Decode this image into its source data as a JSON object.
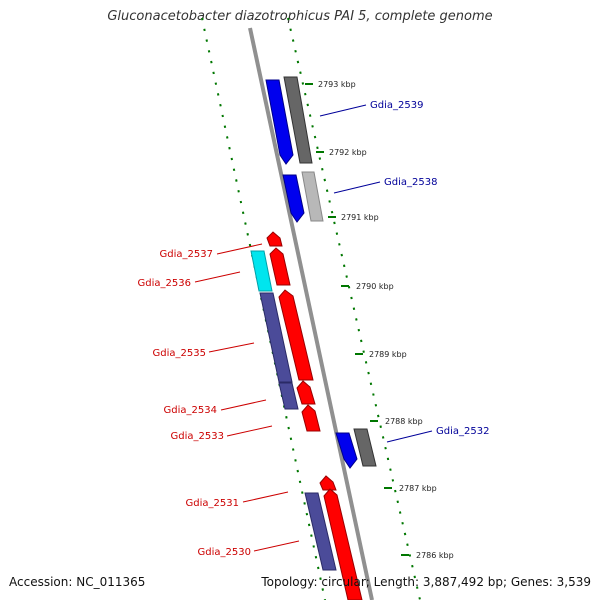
{
  "title": "Gluconacetobacter diazotrophicus PAI 5, complete genome",
  "footer": {
    "accession": "Accession: NC_011365",
    "summary": "Topology: circular; Length: 3,887,492 bp; Genes: 3,539"
  },
  "colors": {
    "forward_cds": "#ff0000",
    "reverse_cds": "#0000ff",
    "reverse_other": "#3333aa",
    "feature_cyan": "#00e5ee",
    "feature_gray": "#666666",
    "backbone": "#909090",
    "tick_green": "#007700",
    "label_red": "#cc0000",
    "label_blue": "#000099"
  },
  "ticks": [
    {
      "label": "2793 kbp"
    },
    {
      "label": "2792 kbp"
    },
    {
      "label": "2791 kbp"
    },
    {
      "label": "2790 kbp"
    },
    {
      "label": "2789 kbp"
    },
    {
      "label": "2788 kbp"
    },
    {
      "label": "2787 kbp"
    },
    {
      "label": "2786 kbp"
    }
  ],
  "genes": [
    {
      "name": "Gdia_2539",
      "strand": "reverse"
    },
    {
      "name": "Gdia_2538",
      "strand": "reverse"
    },
    {
      "name": "Gdia_2537",
      "strand": "forward"
    },
    {
      "name": "Gdia_2536",
      "strand": "forward"
    },
    {
      "name": "Gdia_2535",
      "strand": "forward"
    },
    {
      "name": "Gdia_2534",
      "strand": "forward"
    },
    {
      "name": "Gdia_2533",
      "strand": "forward"
    },
    {
      "name": "Gdia_2532",
      "strand": "reverse"
    },
    {
      "name": "Gdia_2531",
      "strand": "forward"
    },
    {
      "name": "Gdia_2530",
      "strand": "forward"
    }
  ]
}
